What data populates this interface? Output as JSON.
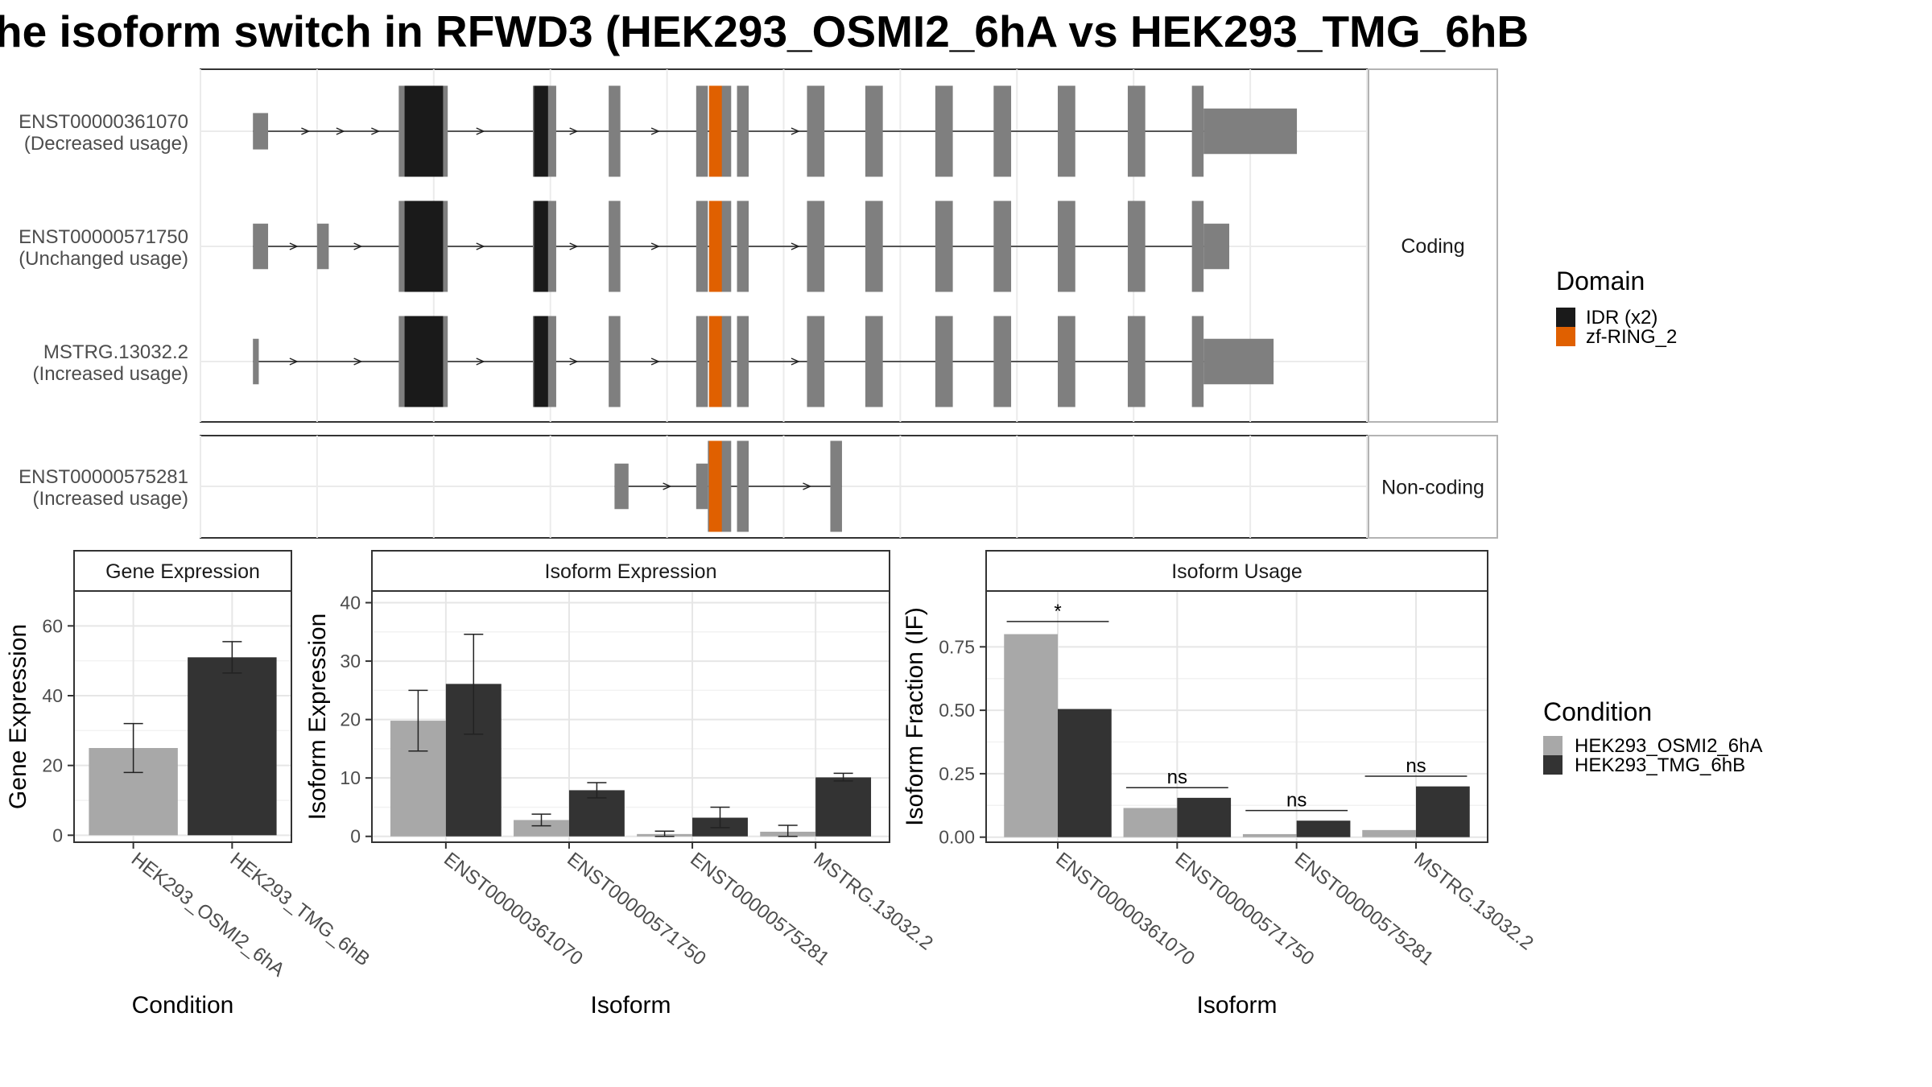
{
  "title": "he isoform switch in RFWD3 (HEK293_OSMI2_6hA vs HEK293_TMG_6hB",
  "colors": {
    "exon": "#7f7f7f",
    "idr": "#1a1a1a",
    "zf_ring": "#e06000",
    "cond_a": "#a8a8a8",
    "cond_b": "#333333"
  },
  "domain_legend": {
    "title": "Domain",
    "items": [
      {
        "label": "IDR (x2)",
        "color": "#1a1a1a"
      },
      {
        "label": "zf-RING_2",
        "color": "#e06000"
      }
    ]
  },
  "condition_legend": {
    "title": "Condition",
    "items": [
      {
        "label": "HEK293_OSMI2_6hA",
        "color": "#a8a8a8"
      },
      {
        "label": "HEK293_TMG_6hB",
        "color": "#333333"
      }
    ]
  },
  "chart_data": [
    {
      "type": "gene_structure",
      "coord_range": [
        0,
        100
      ],
      "panels": [
        {
          "strip": "Coding",
          "isoforms": [
            {
              "id": "ENST00000361070",
              "usage": "(Decreased usage)",
              "exons": [
                [
                  4.5,
                  5.8,
                  0.4
                ],
                [
                  17,
                  18.2,
                  1
                ],
                [
                  18.2,
                  20,
                  1
                ],
                [
                  20,
                  21.2,
                  1
                ],
                [
                  28.5,
                  29.5,
                  1
                ],
                [
                  29.5,
                  30.5,
                  1
                ],
                [
                  35,
                  36,
                  1
                ],
                [
                  42.5,
                  43.5,
                  1
                ],
                [
                  44.5,
                  45.5,
                  1
                ],
                [
                  46,
                  47,
                  1
                ],
                [
                  52,
                  53.5,
                  1
                ],
                [
                  57,
                  58.5,
                  1
                ],
                [
                  63,
                  64.5,
                  1
                ],
                [
                  68,
                  69.5,
                  1
                ],
                [
                  73.5,
                  75,
                  1
                ],
                [
                  79.5,
                  81,
                  1
                ],
                [
                  85,
                  86,
                  1
                ],
                [
                  86,
                  94,
                  0.5
                ]
              ],
              "domains": [
                {
                  "name": "IDR",
                  "start": 17.5,
                  "end": 20.8
                },
                {
                  "name": "IDR",
                  "start": 28.6,
                  "end": 29.8
                },
                {
                  "name": "zf-RING_2",
                  "start": 43.6,
                  "end": 44.7
                }
              ],
              "arrows": [
                9,
                12,
                15,
                24,
                32,
                39,
                51
              ]
            },
            {
              "id": "ENST00000571750",
              "usage": "(Unchanged usage)",
              "exons": [
                [
                  4.5,
                  5.8,
                  0.5
                ],
                [
                  10,
                  11,
                  0.5
                ],
                [
                  17,
                  18.2,
                  1
                ],
                [
                  18.2,
                  20,
                  1
                ],
                [
                  20,
                  21.2,
                  1
                ],
                [
                  28.5,
                  29.5,
                  1
                ],
                [
                  29.5,
                  30.5,
                  1
                ],
                [
                  35,
                  36,
                  1
                ],
                [
                  42.5,
                  43.5,
                  1
                ],
                [
                  44.5,
                  45.5,
                  1
                ],
                [
                  46,
                  47,
                  1
                ],
                [
                  52,
                  53.5,
                  1
                ],
                [
                  57,
                  58.5,
                  1
                ],
                [
                  63,
                  64.5,
                  1
                ],
                [
                  68,
                  69.5,
                  1
                ],
                [
                  73.5,
                  75,
                  1
                ],
                [
                  79.5,
                  81,
                  1
                ],
                [
                  85,
                  86,
                  1
                ],
                [
                  86,
                  88.2,
                  0.5
                ]
              ],
              "domains": [
                {
                  "name": "IDR",
                  "start": 17.5,
                  "end": 20.8
                },
                {
                  "name": "IDR",
                  "start": 28.6,
                  "end": 29.8
                },
                {
                  "name": "zf-RING_2",
                  "start": 43.6,
                  "end": 44.7
                }
              ],
              "arrows": [
                8,
                13.5,
                24,
                32,
                39,
                51
              ]
            },
            {
              "id": "MSTRG.13032.2",
              "usage": "(Increased usage)",
              "exons": [
                [
                  4.5,
                  5,
                  0.5
                ],
                [
                  17,
                  18.2,
                  1
                ],
                [
                  18.2,
                  20,
                  1
                ],
                [
                  20,
                  21.2,
                  1
                ],
                [
                  28.5,
                  29.5,
                  1
                ],
                [
                  29.5,
                  30.5,
                  1
                ],
                [
                  35,
                  36,
                  1
                ],
                [
                  42.5,
                  43.5,
                  1
                ],
                [
                  44.5,
                  45.5,
                  1
                ],
                [
                  46,
                  47,
                  1
                ],
                [
                  52,
                  53.5,
                  1
                ],
                [
                  57,
                  58.5,
                  1
                ],
                [
                  63,
                  64.5,
                  1
                ],
                [
                  68,
                  69.5,
                  1
                ],
                [
                  73.5,
                  75,
                  1
                ],
                [
                  79.5,
                  81,
                  1
                ],
                [
                  85,
                  86,
                  1
                ],
                [
                  86,
                  92,
                  0.5
                ]
              ],
              "domains": [
                {
                  "name": "IDR",
                  "start": 17.5,
                  "end": 20.8
                },
                {
                  "name": "IDR",
                  "start": 28.6,
                  "end": 29.8
                },
                {
                  "name": "zf-RING_2",
                  "start": 43.6,
                  "end": 44.7
                }
              ],
              "arrows": [
                8,
                13.5,
                24,
                32,
                39,
                51
              ]
            }
          ]
        },
        {
          "strip": "Non-coding",
          "isoforms": [
            {
              "id": "ENST00000575281",
              "usage": "(Increased usage)",
              "exons": [
                [
                  35.5,
                  36.7,
                  0.5
                ],
                [
                  42.5,
                  43.5,
                  0.5
                ],
                [
                  43.5,
                  45.5,
                  1
                ],
                [
                  46,
                  47,
                  1
                ],
                [
                  54,
                  55,
                  1
                ]
              ],
              "domains": [
                {
                  "name": "zf-RING_2",
                  "start": 43.6,
                  "end": 44.7
                }
              ],
              "arrows": [
                40,
                52
              ]
            }
          ]
        }
      ]
    },
    {
      "type": "bar",
      "strip": "Gene Expression",
      "xlabel": "Condition",
      "ylabel": "Gene Expression",
      "categories": [
        "HEK293_OSMI2_6hA",
        "HEK293_TMG_6hB"
      ],
      "values": [
        25.0,
        51.0
      ],
      "errors": [
        [
          18.0,
          32.0
        ],
        [
          46.5,
          55.5
        ]
      ],
      "ylim": [
        -2,
        70
      ],
      "yticks": [
        0,
        20,
        40,
        60
      ]
    },
    {
      "type": "bar",
      "strip": "Isoform Expression",
      "xlabel": "Isoform",
      "ylabel": "Isoform Expression",
      "categories": [
        "ENST00000361070",
        "ENST00000571750",
        "ENST00000575281",
        "MSTRG.13032.2"
      ],
      "series": [
        {
          "name": "HEK293_OSMI2_6hA",
          "values": [
            19.8,
            2.8,
            0.4,
            0.8
          ],
          "errors": [
            [
              14.6,
              25.0
            ],
            [
              1.8,
              3.8
            ],
            [
              0.0,
              0.9
            ],
            [
              0.0,
              1.9
            ]
          ]
        },
        {
          "name": "HEK293_TMG_6hB",
          "values": [
            26.1,
            7.9,
            3.2,
            10.1
          ],
          "errors": [
            [
              17.5,
              34.6
            ],
            [
              6.6,
              9.2
            ],
            [
              1.5,
              5.0
            ],
            [
              9.5,
              10.8
            ]
          ]
        }
      ],
      "ylim": [
        -1,
        42
      ],
      "yticks": [
        0,
        10,
        20,
        30,
        40
      ]
    },
    {
      "type": "bar",
      "strip": "Isoform Usage",
      "xlabel": "Isoform",
      "ylabel": "Isoform Fraction (IF)",
      "categories": [
        "ENST00000361070",
        "ENST00000571750",
        "ENST00000575281",
        "MSTRG.13032.2"
      ],
      "series": [
        {
          "name": "HEK293_OSMI2_6hA",
          "values": [
            0.8,
            0.115,
            0.012,
            0.028
          ]
        },
        {
          "name": "HEK293_TMG_6hB",
          "values": [
            0.505,
            0.155,
            0.065,
            0.2
          ]
        }
      ],
      "significance": [
        {
          "label": "*",
          "y": 0.85
        },
        {
          "label": "ns",
          "y": 0.195
        },
        {
          "label": "ns",
          "y": 0.105
        },
        {
          "label": "ns",
          "y": 0.24
        }
      ],
      "ylim": [
        -0.02,
        0.97
      ],
      "yticks": [
        0.0,
        0.25,
        0.5,
        0.75
      ],
      "ytick_labels": [
        "0.00",
        "0.25",
        "0.50",
        "0.75"
      ]
    }
  ]
}
